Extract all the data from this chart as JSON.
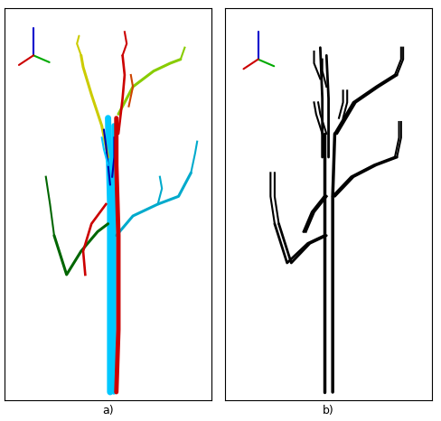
{
  "fig_width": 4.88,
  "fig_height": 4.66,
  "dpi": 100,
  "background": "#ffffff",
  "label_a": "a)",
  "label_b": "b)",
  "label_fontsize": 9,
  "border_color": "#000000",
  "cyan": "#00c8ff",
  "red": "#cc0000",
  "yellow": "#cccc00",
  "dark_green": "#006600",
  "lime_green": "#88cc00",
  "cyan2": "#00aacc",
  "blue": "#0000aa",
  "orange": "#cc6600",
  "black": "#000000",
  "axis_red": "#cc0000",
  "axis_green": "#00aa00",
  "axis_blue": "#0000cc"
}
